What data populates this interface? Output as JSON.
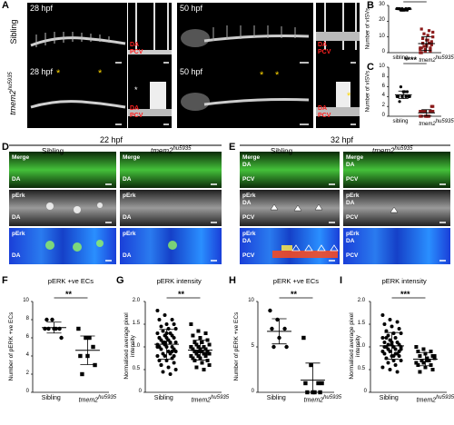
{
  "panel_letters": [
    "A",
    "B",
    "C",
    "D",
    "E",
    "F",
    "G",
    "H",
    "I"
  ],
  "panel_A": {
    "row_labels": [
      "Sibling",
      "tmem2"
    ],
    "row_label_sup": "hu5935",
    "stage_labels": [
      "28 hpf",
      "50 hpf",
      "28 hpf",
      "50 hpf"
    ],
    "vessel_labels": {
      "da": "DA",
      "pcv": "PCV"
    },
    "star": "*"
  },
  "section_headers": [
    "22 hpf",
    "32 hpf",
    "Sibling",
    "tmem2",
    "Sibling",
    "tmem2"
  ],
  "header_sup": "hu5935",
  "image_labels": {
    "merge": "Merge",
    "perk": "pErk",
    "da": "DA",
    "pcv": "PCV"
  },
  "colors": {
    "red_label": "#ff2020",
    "star": "#ffd700",
    "green": "#44c13a"
  },
  "chart_data": [
    {
      "id": "B",
      "type": "scatter",
      "categories": [
        "sibling",
        "tmem2"
      ],
      "cat_sup": "hu5935",
      "ylabel": "Number of vISVs",
      "ylim": [
        0,
        30
      ],
      "yticks": [
        0,
        10,
        20,
        30
      ],
      "significance": "****",
      "series": [
        {
          "values": [
            28,
            28,
            27,
            28,
            27,
            28,
            28,
            27,
            28,
            27,
            28,
            28,
            27
          ]
        },
        {
          "values": [
            0,
            1,
            2,
            3,
            4,
            5,
            6,
            8,
            10,
            12,
            14,
            3,
            2,
            1,
            0,
            5,
            7,
            9,
            11,
            13,
            4,
            6,
            2,
            1,
            3,
            15,
            8
          ]
        }
      ]
    },
    {
      "id": "C",
      "type": "scatter",
      "categories": [
        "sibling",
        "tmem2"
      ],
      "cat_sup": "hu5935",
      "ylabel": "Number of vISVs",
      "ylim": [
        0,
        10
      ],
      "yticks": [
        0,
        2,
        4,
        6,
        8,
        10
      ],
      "significance": "****",
      "series": [
        {
          "values": [
            4,
            4,
            5,
            4,
            5,
            4,
            3,
            5,
            4,
            6,
            4
          ]
        },
        {
          "values": [
            0,
            1,
            1,
            0,
            0,
            1,
            1,
            0,
            2,
            1,
            0,
            1,
            0,
            1,
            1,
            0,
            2,
            1,
            0,
            1
          ]
        }
      ]
    },
    {
      "id": "F",
      "type": "scatter",
      "title": "pERK +ve ECs",
      "categories": [
        "Sibling",
        "tmem2"
      ],
      "cat_sup": "hu5935",
      "ylabel": "Number of pERK +ve ECs",
      "ylim": [
        0,
        10
      ],
      "yticks": [
        0,
        2,
        4,
        6,
        8,
        10
      ],
      "significance": "**",
      "series": [
        {
          "values": [
            7,
            8,
            7,
            8,
            7,
            6,
            7,
            7
          ]
        },
        {
          "values": [
            7,
            6,
            5,
            4,
            4,
            3,
            2,
            6
          ]
        }
      ]
    },
    {
      "id": "G",
      "type": "scatter",
      "title": "pERK intensity",
      "categories": [
        "Sibling",
        "tmem2"
      ],
      "cat_sup": "hu5935",
      "ylabel": "Normalised average pixel intensity",
      "ylim": [
        0,
        2.0
      ],
      "yticks": [
        0,
        0.5,
        1.0,
        1.5,
        2.0
      ],
      "significance": "**",
      "series": [
        {
          "values": [
            1.8,
            1.7,
            1.6,
            1.6,
            1.5,
            1.5,
            1.45,
            1.4,
            1.4,
            1.35,
            1.3,
            1.3,
            1.25,
            1.25,
            1.2,
            1.2,
            1.2,
            1.15,
            1.15,
            1.1,
            1.1,
            1.1,
            1.05,
            1.05,
            1.0,
            1.0,
            1.0,
            0.95,
            0.95,
            0.9,
            0.9,
            0.85,
            0.85,
            0.8,
            0.8,
            0.75,
            0.7,
            0.7,
            0.65,
            0.6,
            0.55,
            0.5,
            0.45,
            0.4,
            1.0,
            1.1,
            0.9,
            1.2,
            1.3,
            0.8,
            0.6
          ]
        },
        {
          "values": [
            1.5,
            1.35,
            1.3,
            1.25,
            1.2,
            1.15,
            1.1,
            1.1,
            1.05,
            1.05,
            1.0,
            1.0,
            1.0,
            0.95,
            0.95,
            0.95,
            0.9,
            0.9,
            0.9,
            0.85,
            0.85,
            0.85,
            0.8,
            0.8,
            0.8,
            0.75,
            0.75,
            0.7,
            0.7,
            0.65,
            0.6,
            0.55,
            0.5,
            1.0,
            0.9,
            0.85
          ]
        }
      ]
    },
    {
      "id": "H",
      "type": "scatter",
      "title": "pERK +ve ECs",
      "categories": [
        "Sibling",
        "tmem2"
      ],
      "cat_sup": "hu5935",
      "ylabel": "Number of pERK +ve ECs",
      "ylim": [
        0,
        10
      ],
      "yticks": [
        0,
        5,
        10
      ],
      "significance": "**",
      "series": [
        {
          "values": [
            9,
            8,
            7,
            7,
            6,
            5,
            5
          ]
        },
        {
          "values": [
            6,
            3,
            1,
            1,
            0,
            0,
            0,
            0,
            1
          ]
        }
      ]
    },
    {
      "id": "I",
      "type": "scatter",
      "title": "pERK intensity",
      "categories": [
        "Sibling",
        "tmem2"
      ],
      "cat_sup": "hu5935",
      "ylabel": "Normalised average pixel intensity",
      "ylim": [
        0,
        2.0
      ],
      "yticks": [
        0,
        0.5,
        1.0,
        1.5,
        2.0
      ],
      "significance": "***",
      "series": [
        {
          "values": [
            1.7,
            1.6,
            1.55,
            1.5,
            1.45,
            1.4,
            1.35,
            1.3,
            1.3,
            1.25,
            1.2,
            1.2,
            1.15,
            1.1,
            1.1,
            1.05,
            1.05,
            1.0,
            1.0,
            1.0,
            0.95,
            0.95,
            0.9,
            0.9,
            0.85,
            0.85,
            0.8,
            0.8,
            0.75,
            0.7,
            0.7,
            0.65,
            0.6,
            0.55,
            0.5,
            0.45,
            1.0,
            1.1,
            0.9,
            1.2,
            0.8,
            0.95,
            1.05,
            0.85
          ]
        },
        {
          "values": [
            1.0,
            0.95,
            0.9,
            0.9,
            0.85,
            0.8,
            0.8,
            0.75,
            0.75,
            0.7,
            0.7,
            0.65,
            0.65,
            0.6,
            0.6,
            0.55,
            0.5,
            0.45,
            0.7,
            0.8
          ]
        }
      ]
    }
  ]
}
